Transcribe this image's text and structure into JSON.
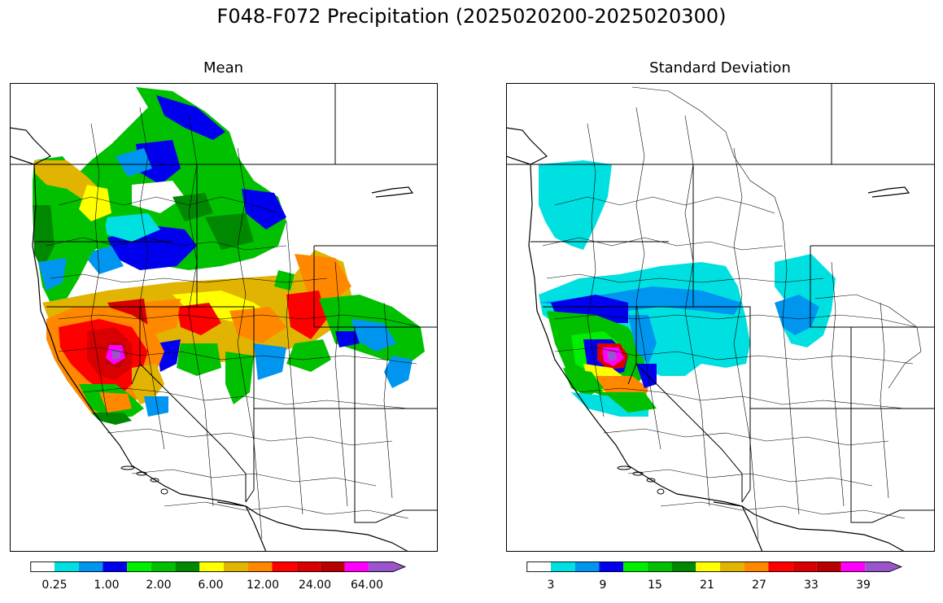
{
  "title": "F048-F072 Precipitation (2025020200-2025020300)",
  "panels": [
    {
      "id": "mean",
      "title": "Mean",
      "colorbar": {
        "colors": [
          "#ffffff",
          "#00e0e0",
          "#0096f0",
          "#0000ee",
          "#00ee00",
          "#00c000",
          "#008800",
          "#ffff00",
          "#e0b400",
          "#ff8800",
          "#ff0000",
          "#d80000",
          "#b80000",
          "#ff00ff",
          "#9955cc"
        ],
        "tick_labels": [
          "0.25",
          "1.00",
          "2.00",
          "6.00",
          "12.00",
          "24.00",
          "64.00"
        ],
        "extend": "max"
      }
    },
    {
      "id": "std",
      "title": "Standard Deviation",
      "colorbar": {
        "colors": [
          "#ffffff",
          "#00e0e0",
          "#0096f0",
          "#0000ee",
          "#00ee00",
          "#00c000",
          "#008800",
          "#ffff00",
          "#e0b400",
          "#ff8800",
          "#ff0000",
          "#d80000",
          "#b80000",
          "#ff00ff",
          "#9955cc"
        ],
        "tick_labels": [
          "3",
          "9",
          "15",
          "21",
          "27",
          "33",
          "39"
        ],
        "extend": "max"
      }
    }
  ]
}
